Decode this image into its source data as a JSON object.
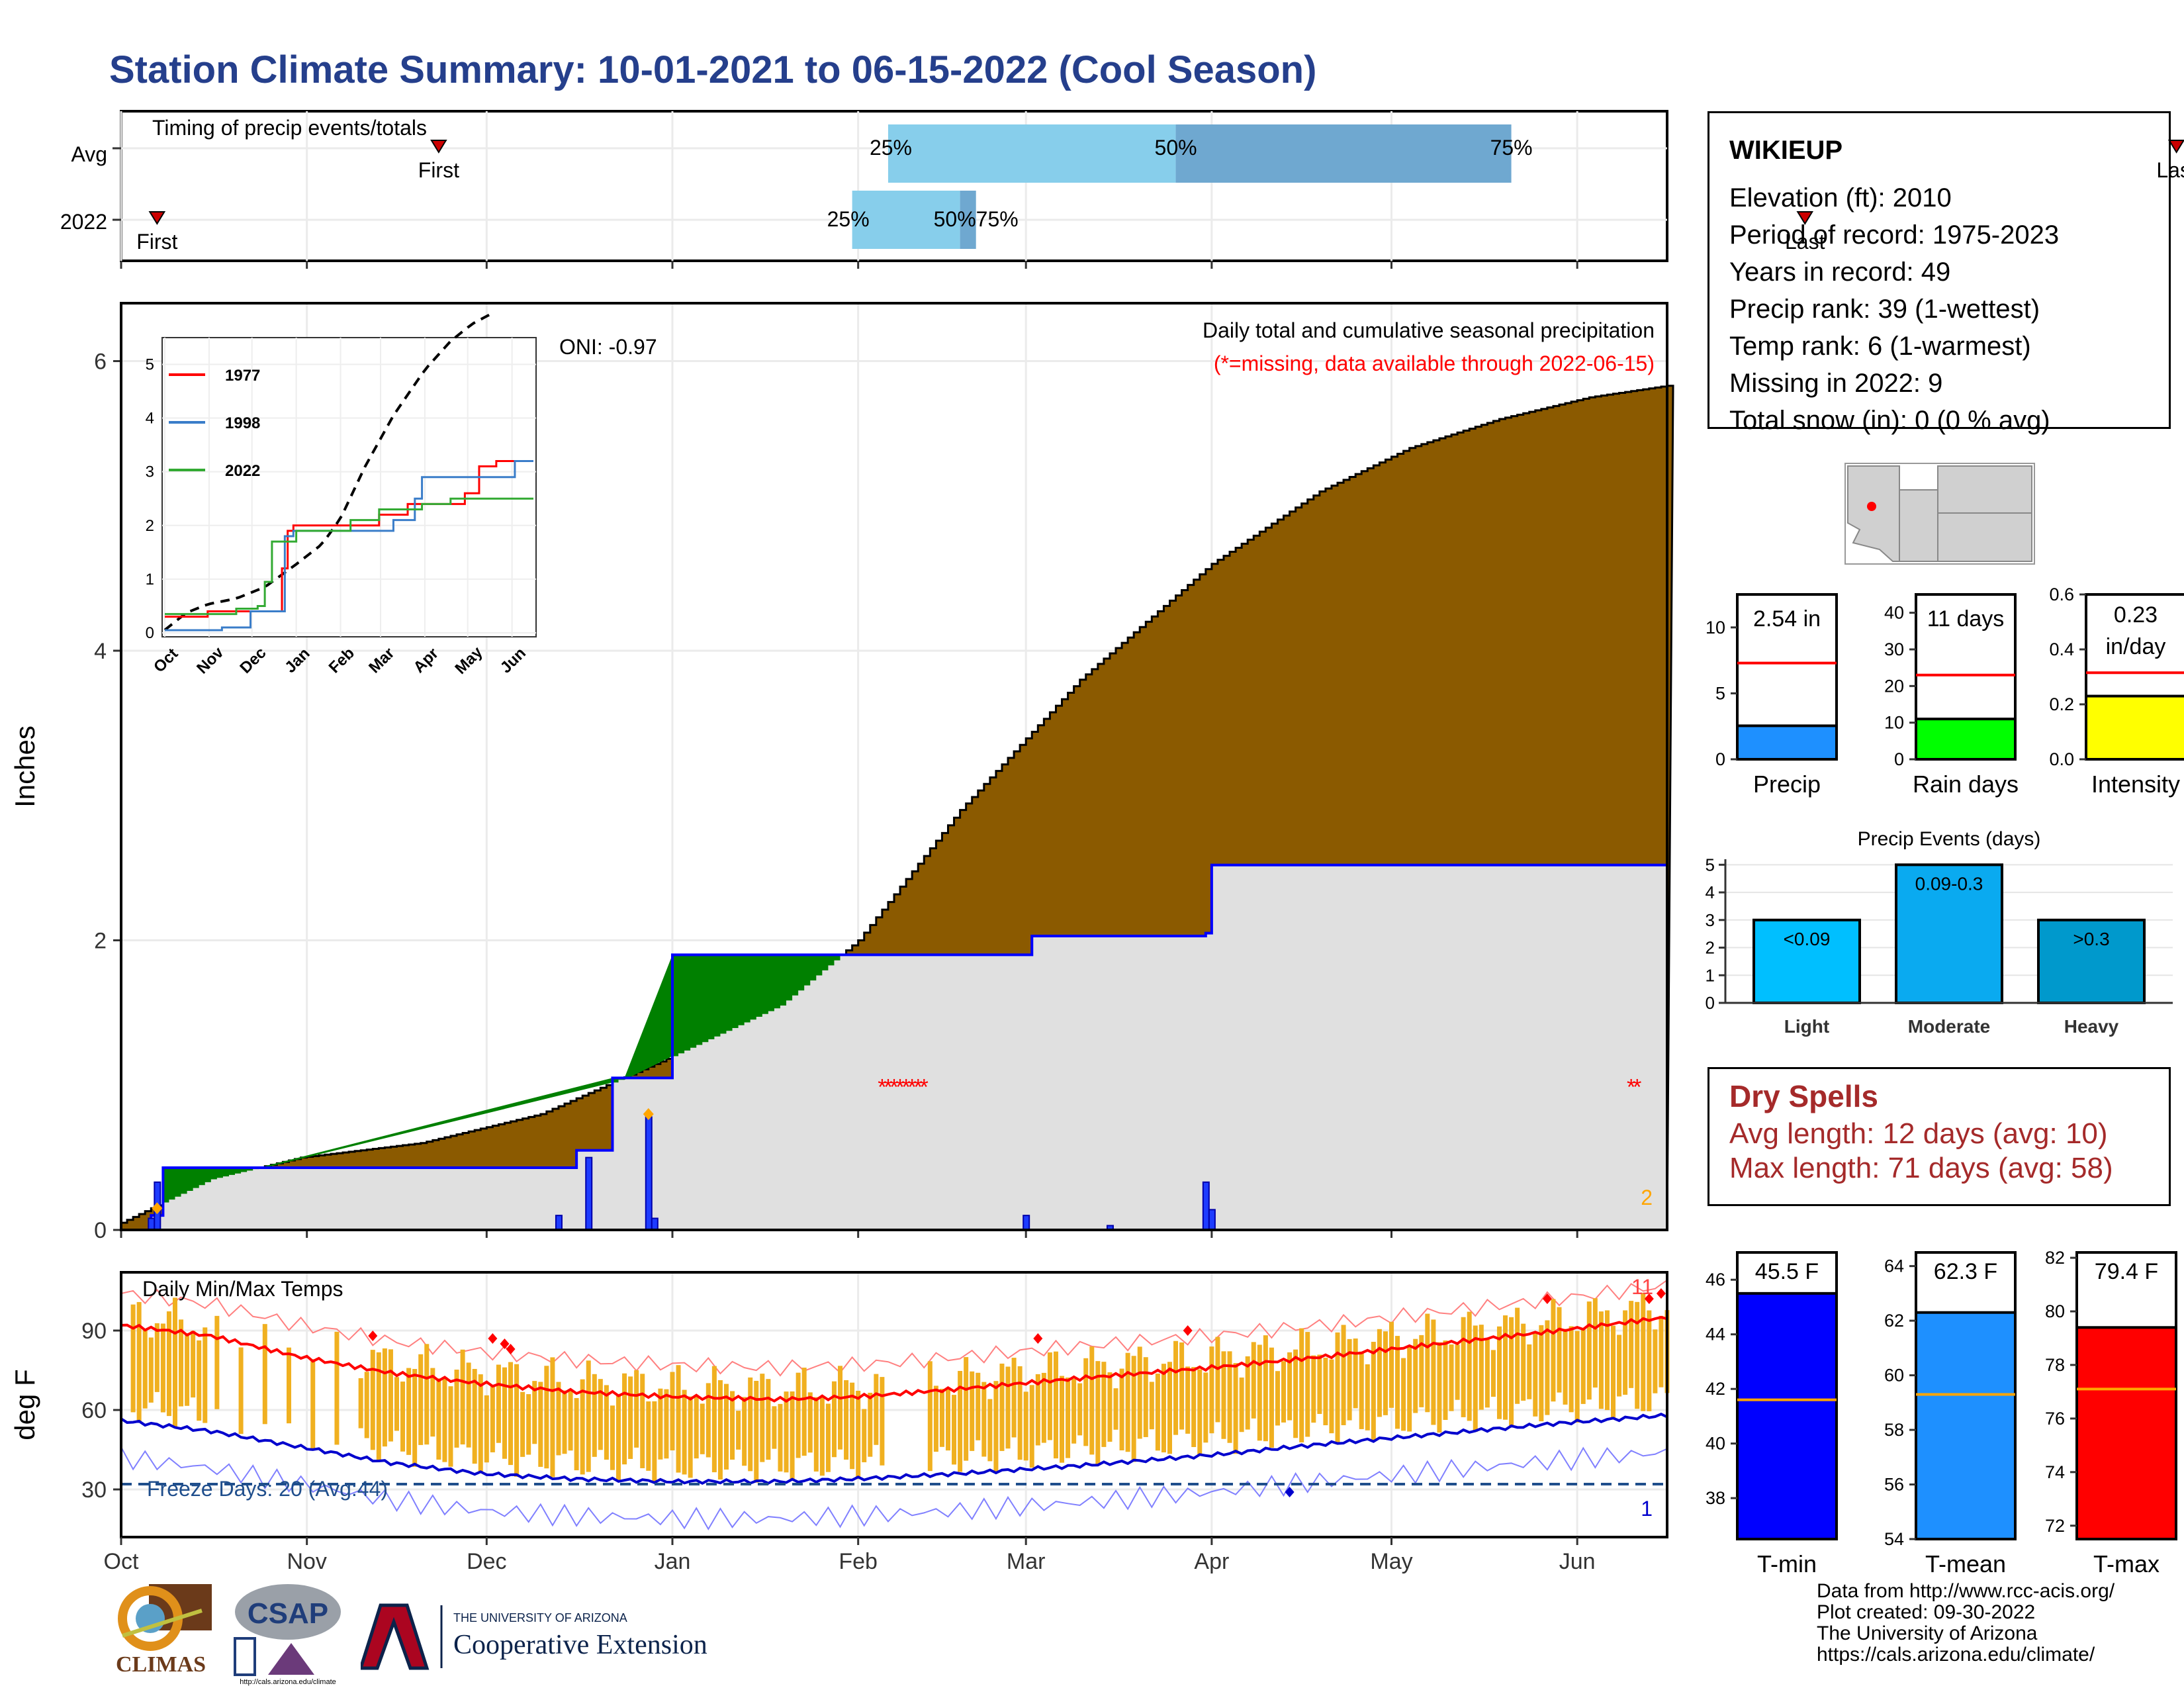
{
  "title": "Station Climate Summary: 10-01-2021 to 06-15-2022 (Cool Season)",
  "station": {
    "name": "WIKIEUP",
    "lines": [
      "Elevation (ft): 2010",
      "Period of record: 1975-2023",
      "Years in record: 49",
      "Precip rank: 39 (1-wettest)",
      "Temp rank: 6 (1-warmest)",
      "Missing in 2022: 9",
      "Total snow (in): 0 (0 % avg)"
    ]
  },
  "timing_panel": {
    "title": "Timing of precip events/totals",
    "rows": [
      "Avg",
      "2022"
    ],
    "first_label": "First",
    "last_label": "Last",
    "pct_labels": [
      "25%",
      "50%",
      "75%"
    ],
    "avg": {
      "first": 53,
      "last": 343,
      "p25": 128,
      "p50": 176,
      "p75": 232
    },
    "y2022": {
      "first": 6,
      "last": 281,
      "p25": 122,
      "p50": 140,
      "p75": 142,
      "overlap_label": "50%75%"
    },
    "colors": {
      "light": "#87ceeb",
      "dark": "#6fa8d0"
    }
  },
  "month_labels": [
    "Oct",
    "Nov",
    "Dec",
    "Jan",
    "Feb",
    "Mar",
    "Apr",
    "May",
    "Jun"
  ],
  "month_days": [
    0,
    31,
    61,
    92,
    123,
    151,
    182,
    212,
    243
  ],
  "precip_panel": {
    "ylabel": "Inches",
    "annotation_title": "Daily total and cumulative seasonal precipitation",
    "annotation_missing": "(*=missing, data available through 2022-06-15)",
    "oni": "ONI: -0.97",
    "corner_count": "2",
    "yticks": [
      "0",
      "2",
      "4",
      "6"
    ],
    "colors": {
      "avg_fill": "#8b5a00",
      "obs_fill": "#e0e0e0",
      "obs_line": "#0000ff",
      "surplus": "#008000",
      "missing": "#ff0000",
      "extreme": "#ffa500"
    }
  },
  "inset": {
    "legend": [
      "1977",
      "1998",
      "2022"
    ],
    "legend_colors": [
      "#ff0000",
      "#3a7dc9",
      "#33aa33"
    ],
    "yticks": [
      "0",
      "1",
      "2",
      "3",
      "4",
      "5"
    ],
    "xticks": [
      "Oct",
      "Nov",
      "Dec",
      "Jan",
      "Feb",
      "Mar",
      "Apr",
      "May",
      "Jun"
    ]
  },
  "temp_panel": {
    "ylabel": "deg F",
    "title": "Daily Min/Max Temps",
    "freeze": "Freeze Days: 20 (Avg:44)",
    "count_high": "11",
    "count_low": "1",
    "yticks": [
      "30",
      "60",
      "90"
    ],
    "colors": {
      "bars": "#f0b020",
      "max_avg": "#ff0000",
      "min_avg": "#0000cd",
      "freeze": "#1f4e8c"
    }
  },
  "summary_bars": [
    {
      "label": "Precip",
      "value_label": "2.54 in",
      "value": 2.54,
      "avg": 7.3,
      "ymax": 12.5,
      "ticks": [
        "0",
        "5",
        "10"
      ],
      "tickvals": [
        0,
        5,
        10
      ],
      "color": "#1e90ff"
    },
    {
      "label": "Rain days",
      "value_label": "11 days",
      "value": 11,
      "avg": 23,
      "ymax": 45,
      "ticks": [
        "0",
        "10",
        "20",
        "30",
        "40"
      ],
      "tickvals": [
        0,
        10,
        20,
        30,
        40
      ],
      "color": "#00ff00"
    },
    {
      "label": "Intensity",
      "value_label1": "0.23",
      "value_label2": "in/day",
      "value": 0.23,
      "avg": 0.315,
      "ymax": 0.6,
      "ticks": [
        "0.0",
        "0.2",
        "0.4",
        "0.6"
      ],
      "tickvals": [
        0,
        0.2,
        0.4,
        0.6
      ],
      "color": "#ffff00"
    }
  ],
  "events_chart": {
    "title": "Precip Events (days)",
    "categories": [
      "Light",
      "Moderate",
      "Heavy"
    ],
    "bar_labels": [
      "<0.09",
      "0.09-0.3",
      ">0.3"
    ],
    "values": [
      3,
      5,
      3
    ],
    "yticks": [
      "0",
      "1",
      "2",
      "3",
      "4",
      "5"
    ],
    "colors": [
      "#00bfff",
      "#0aaaf0",
      "#0099cc"
    ]
  },
  "dry_spells": {
    "title": "Dry Spells",
    "avg_line": "Avg length: 12 days (avg: 10)",
    "max_line": "Max length: 71 days (avg: 58)"
  },
  "temp_bars": [
    {
      "label": "T-min",
      "value_label": "45.5 F",
      "value": 45.5,
      "avg": 41.6,
      "ymin": 36.5,
      "ymax": 47,
      "ticks": [
        "38",
        "40",
        "42",
        "44",
        "46"
      ],
      "tickvals": [
        38,
        40,
        42,
        44,
        46
      ],
      "color": "#0000ff"
    },
    {
      "label": "T-mean",
      "value_label": "62.3 F",
      "value": 62.3,
      "avg": 59.3,
      "ymin": 54,
      "ymax": 64.5,
      "ticks": [
        "54",
        "56",
        "58",
        "60",
        "62",
        "64"
      ],
      "tickvals": [
        54,
        56,
        58,
        60,
        62,
        64
      ],
      "color": "#1e90ff"
    },
    {
      "label": "T-max",
      "value_label": "79.4 F",
      "value": 79.4,
      "avg": 77.1,
      "ymin": 71.5,
      "ymax": 82.2,
      "ticks": [
        "72",
        "74",
        "76",
        "78",
        "80",
        "82"
      ],
      "tickvals": [
        72,
        74,
        76,
        78,
        80,
        82
      ],
      "color": "#ff0000"
    }
  ],
  "credits": [
    "Data from http://www.rcc-acis.org/",
    "Plot created: 09-30-2022",
    "The University of Arizona",
    "https://cals.arizona.edu/climate/"
  ],
  "logos": {
    "climas": "CLIMAS",
    "csap": "CSAP",
    "csap_url": "http://cals.arizona.edu/climate",
    "ua_small": "THE UNIVERSITY OF ARIZONA",
    "ua_big": "Cooperative Extension"
  },
  "chart_data": [
    {
      "type": "area",
      "title": "Daily total and cumulative seasonal precipitation",
      "ylabel": "Inches",
      "ylim": [
        0,
        6.4
      ],
      "x_units": "days since Oct 1",
      "avg_cumulative": {
        "x": [
          0,
          15,
          30,
          50,
          70,
          92,
          110,
          123,
          140,
          160,
          182,
          200,
          215,
          230,
          245,
          258
        ],
        "y": [
          0.05,
          0.35,
          0.5,
          0.6,
          0.8,
          1.2,
          1.55,
          2.0,
          2.9,
          3.8,
          4.6,
          5.1,
          5.4,
          5.6,
          5.75,
          5.83
        ]
      },
      "observed_cumulative": {
        "x": [
          0,
          5,
          7,
          61,
          76,
          82,
          91,
          92,
          150,
          152,
          181,
          182,
          258
        ],
        "y": [
          0,
          0.1,
          0.43,
          0.43,
          0.55,
          1.05,
          1.05,
          1.9,
          1.9,
          2.03,
          2.05,
          2.52,
          2.54
        ]
      },
      "daily_bars": {
        "x": [
          5,
          6,
          73,
          78,
          88,
          89,
          151,
          165,
          181,
          182
        ],
        "y": [
          0.08,
          0.33,
          0.1,
          0.5,
          0.78,
          0.08,
          0.1,
          0.03,
          0.33,
          0.14
        ]
      },
      "missing_days": [
        127,
        128,
        129,
        130,
        131,
        132,
        133,
        134,
        252,
        253
      ]
    },
    {
      "type": "line",
      "title": "Daily Min/Max Temps",
      "ylabel": "deg F",
      "ylim": [
        12,
        112
      ],
      "avg_max": {
        "x": [
          0,
          15,
          30,
          45,
          60,
          75,
          92,
          110,
          123,
          140,
          160,
          182,
          200,
          220,
          240,
          258
        ],
        "y": [
          92,
          88,
          80,
          74,
          70,
          67,
          65,
          64,
          65,
          68,
          72,
          76,
          80,
          85,
          90,
          95
        ]
      },
      "avg_min": {
        "x": [
          0,
          15,
          30,
          45,
          60,
          75,
          92,
          110,
          123,
          140,
          160,
          182,
          200,
          220,
          240,
          258
        ],
        "y": [
          56,
          52,
          46,
          40,
          36,
          34,
          33,
          33,
          34,
          36,
          39,
          43,
          47,
          51,
          55,
          58
        ]
      }
    }
  ]
}
